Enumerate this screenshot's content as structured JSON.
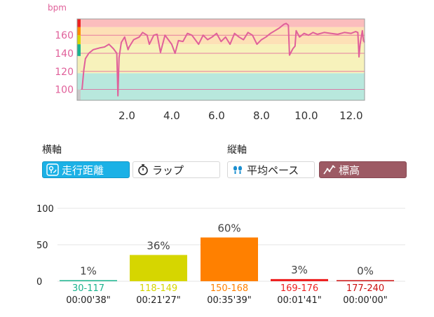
{
  "hr_chart": {
    "unit": "bpm",
    "y_ticks": [
      100,
      120,
      140,
      160
    ],
    "x_ticks": [
      "2.0",
      "4.0",
      "6.0",
      "8.0",
      "10.0",
      "12.0"
    ],
    "x_range": [
      0,
      12.6
    ],
    "y_range": [
      88,
      178
    ],
    "zones": [
      {
        "from": 88,
        "to": 118,
        "color": "#b8e8dd"
      },
      {
        "from": 118,
        "to": 150,
        "color": "#f7f2bb"
      },
      {
        "from": 150,
        "to": 169,
        "color": "#fde0b6"
      },
      {
        "from": 169,
        "to": 178,
        "color": "#fbbdbd"
      }
    ],
    "zone_bar_colors": [
      "#c8c8c8",
      "#1ab38e",
      "#d6d600",
      "#ff8a00",
      "#ee2222"
    ],
    "line_color": "#e0609a",
    "chart_data": {
      "type": "line",
      "x": [
        0.0,
        0.08,
        0.15,
        0.3,
        0.5,
        0.8,
        1.0,
        1.2,
        1.4,
        1.55,
        1.6,
        1.65,
        1.75,
        1.9,
        2.05,
        2.1,
        2.3,
        2.55,
        2.7,
        2.9,
        3.0,
        3.2,
        3.35,
        3.5,
        3.7,
        3.85,
        4.0,
        4.15,
        4.3,
        4.5,
        4.7,
        4.9,
        5.2,
        5.4,
        5.6,
        5.8,
        6.0,
        6.2,
        6.4,
        6.6,
        6.8,
        7.0,
        7.2,
        7.4,
        7.6,
        7.8,
        8.0,
        8.2,
        8.4,
        8.6,
        8.8,
        9.0,
        9.1,
        9.2,
        9.25,
        9.4,
        9.5,
        9.55,
        9.7,
        9.9,
        10.1,
        10.3,
        10.5,
        10.8,
        11.1,
        11.4,
        11.7,
        12.0,
        12.2,
        12.3,
        12.35,
        12.4,
        12.5,
        12.55,
        12.6
      ],
      "values": [
        100,
        122,
        134,
        140,
        144,
        146,
        147,
        150,
        145,
        140,
        93,
        135,
        152,
        158,
        144,
        147,
        155,
        158,
        163,
        160,
        150,
        160,
        161,
        141,
        160,
        155,
        150,
        140,
        154,
        153,
        162,
        160,
        150,
        160,
        155,
        158,
        162,
        153,
        158,
        150,
        162,
        158,
        155,
        163,
        160,
        150,
        155,
        158,
        162,
        165,
        168,
        172,
        173,
        171,
        138,
        145,
        148,
        165,
        158,
        162,
        160,
        163,
        161,
        163,
        162,
        161,
        163,
        162,
        164,
        163,
        136,
        150,
        165,
        154,
        152
      ],
      "xlabel": "",
      "ylabel": "bpm"
    }
  },
  "axis_controls": {
    "x_label": "横軸",
    "y_label": "縦軸",
    "x_buttons": [
      {
        "label": "走行距離",
        "icon": "map-pin-icon",
        "selected": true
      },
      {
        "label": "ラップ",
        "icon": "stopwatch-icon",
        "selected": false
      }
    ],
    "y_buttons": [
      {
        "label": "平均ペース",
        "icon": "footprints-icon",
        "selected": false
      },
      {
        "label": "標高",
        "icon": "elevation-icon",
        "selected": true
      }
    ]
  },
  "zone_chart": {
    "chart_data": {
      "type": "bar",
      "categories": [
        "30-117",
        "118-149",
        "150-168",
        "169-176",
        "177-240"
      ],
      "values": [
        1,
        36,
        60,
        3,
        0
      ],
      "value_labels": [
        "1%",
        "36%",
        "60%",
        "3%",
        "0%"
      ],
      "times": [
        "00:00'38\"",
        "00:21'27\"",
        "00:35'39\"",
        "00:01'41\"",
        "00:00'00\""
      ],
      "colors": [
        "#1ab38e",
        "#d6d600",
        "#ff8000",
        "#ee2222",
        "#cc1111"
      ],
      "y_ticks": [
        0,
        50,
        100
      ],
      "ylim": [
        0,
        100
      ]
    }
  }
}
